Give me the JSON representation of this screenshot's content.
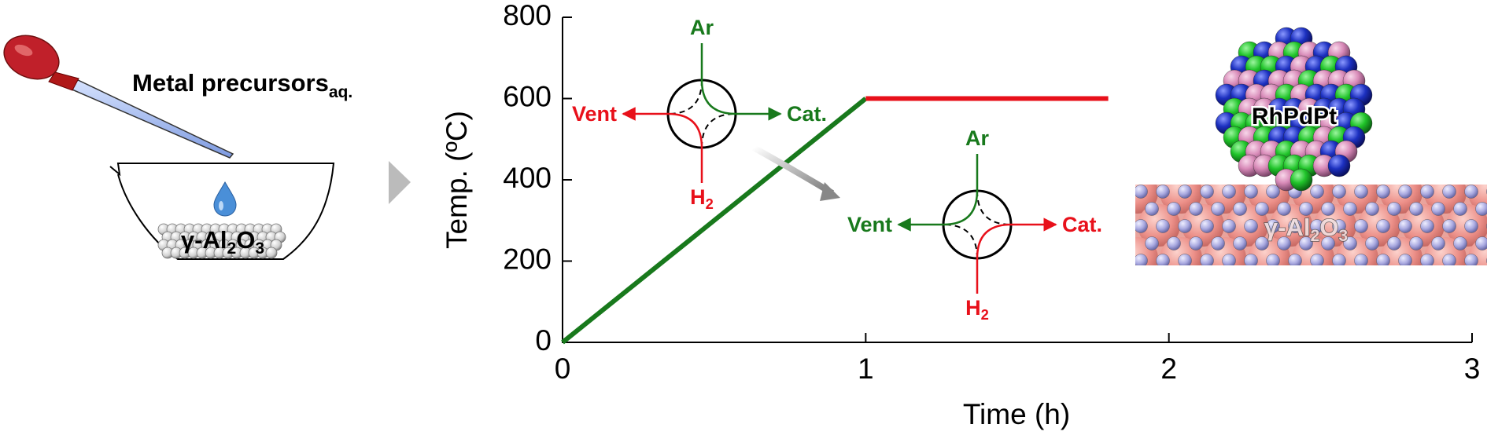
{
  "chart_data": {
    "type": "line",
    "x_label": "Time (h)",
    "y_label": "Temp. (ºC)",
    "xlim": [
      0,
      3
    ],
    "ylim": [
      0,
      800
    ],
    "xticks": [
      0,
      1,
      2,
      3
    ],
    "yticks": [
      0,
      200,
      400,
      600,
      800
    ],
    "series": [
      {
        "color": "#18791c",
        "x": [
          0,
          1
        ],
        "values": [
          0,
          600
        ]
      },
      {
        "color": "#e8101a",
        "x": [
          1,
          1.8
        ],
        "values": [
          600,
          600
        ]
      }
    ]
  },
  "illustration": {
    "precursor_label": [
      "Metal precursors",
      "aq."
    ],
    "support_label": [
      "γ-Al",
      "2",
      "O",
      "3"
    ],
    "valve_1": {
      "top": "Ar",
      "left": "Vent",
      "right": "Cat.",
      "bottom": [
        "H",
        "2"
      ]
    },
    "valve_2": {
      "top": "Ar",
      "left": "Vent",
      "right": "Cat.",
      "bottom": [
        "H",
        "2"
      ]
    },
    "particle_label": "RhPdPt",
    "surface_label": [
      "γ-Al",
      "2",
      "O",
      "3"
    ]
  }
}
